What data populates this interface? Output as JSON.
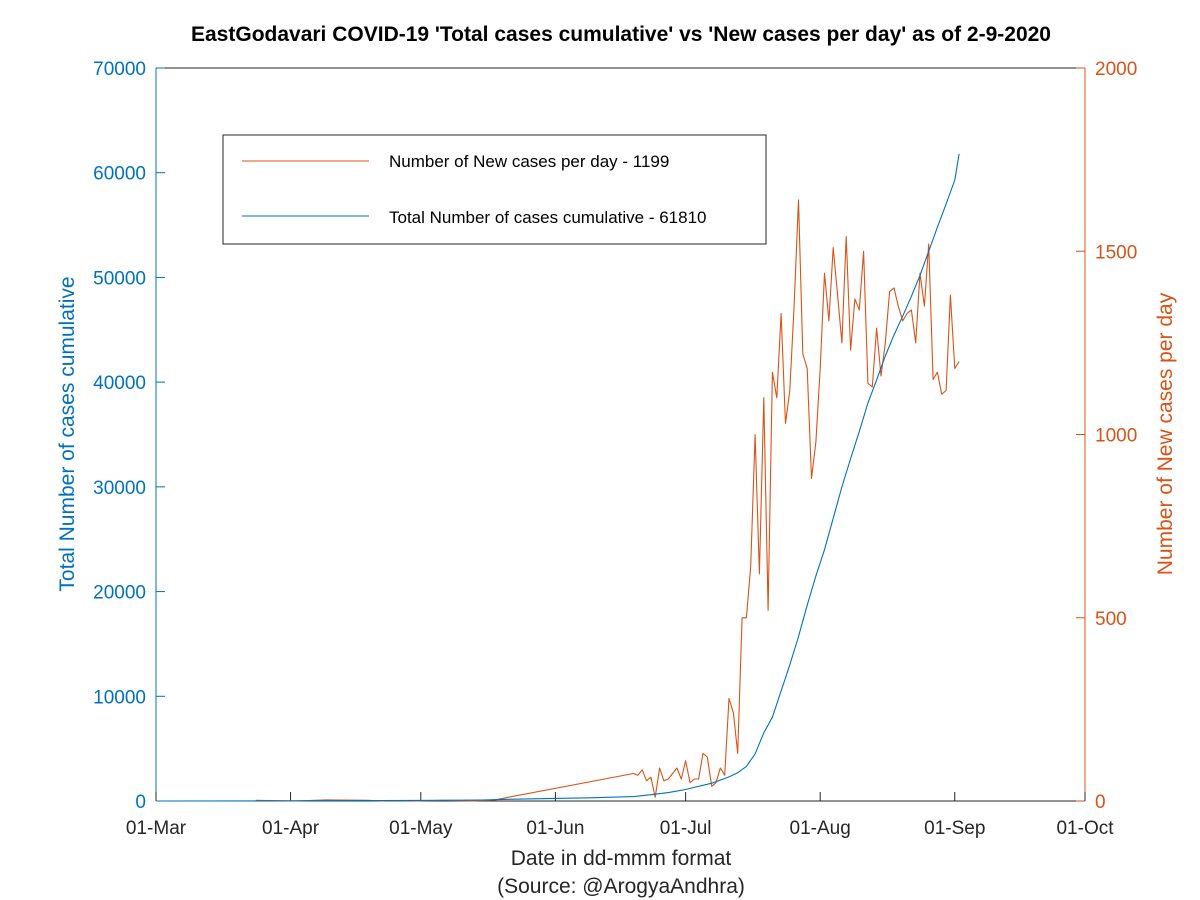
{
  "chart_data": {
    "type": "line",
    "title": "EastGodavari COVID-19 'Total cases cumulative' vs 'New cases per day' as of 2-9-2020",
    "xlabel": "Date in dd-mmm format",
    "xlabel_source": "(Source: @ArogyaAndhra)",
    "ylabel_left": "Total Number of cases cumulative",
    "ylabel_right": "Number of New cases per day",
    "x_ticks": [
      "01-Mar",
      "01-Apr",
      "01-May",
      "01-Jun",
      "01-Jul",
      "01-Aug",
      "01-Sep",
      "01-Oct"
    ],
    "x_tick_day_index": [
      0,
      31,
      61,
      92,
      122,
      153,
      184,
      214
    ],
    "x_range": [
      0,
      214
    ],
    "y_left_ticks": [
      "0",
      "10000",
      "20000",
      "30000",
      "40000",
      "50000",
      "60000",
      "70000"
    ],
    "y_left_range": [
      0,
      70000
    ],
    "y_right_ticks": [
      "0",
      "500",
      "1000",
      "1500",
      "2000"
    ],
    "y_right_range": [
      0,
      2000
    ],
    "grid": false,
    "legend_position": "top-left",
    "colors": {
      "new_cases": "#d95319",
      "cumulative": "#0072bd",
      "axis_left": "#0072bd",
      "axis_right": "#d95319",
      "frame": "#262626"
    },
    "series": [
      {
        "key": "new_cases",
        "name": "Number of New cases per day - 1199",
        "axis": "right",
        "x": [
          23,
          32,
          39,
          49,
          52,
          55,
          60,
          66,
          73,
          78,
          110,
          111,
          112,
          113,
          114,
          115,
          116,
          117,
          118,
          119,
          120,
          121,
          122,
          123,
          124,
          125,
          126,
          127,
          128,
          129,
          130,
          131,
          132,
          133,
          134,
          135,
          136,
          137,
          138,
          139,
          140,
          141,
          142,
          143,
          144,
          145,
          146,
          147,
          148,
          149,
          150,
          151,
          152,
          153,
          154,
          155,
          156,
          157,
          158,
          159,
          160,
          161,
          162,
          163,
          164,
          165,
          166,
          167,
          168,
          169,
          170,
          171,
          172,
          173,
          174,
          175,
          176,
          177,
          178,
          179,
          180,
          181,
          182,
          183,
          184,
          185
        ],
        "y": [
          2,
          0,
          3,
          2,
          0,
          1,
          0,
          2,
          0,
          3,
          75,
          70,
          85,
          55,
          65,
          10,
          90,
          55,
          60,
          75,
          90,
          60,
          110,
          50,
          60,
          60,
          130,
          120,
          40,
          50,
          90,
          70,
          280,
          240,
          130,
          500,
          500,
          640,
          1000,
          620,
          1100,
          520,
          1170,
          1100,
          1330,
          1030,
          1120,
          1350,
          1640,
          1220,
          1180,
          880,
          980,
          1180,
          1440,
          1310,
          1510,
          1380,
          1250,
          1540,
          1230,
          1370,
          1340,
          1500,
          1140,
          1130,
          1290,
          1160,
          1250,
          1390,
          1400,
          1350,
          1310,
          1330,
          1340,
          1250,
          1440,
          1350,
          1520,
          1150,
          1170,
          1110,
          1120,
          1380,
          1180,
          1199
        ]
      },
      {
        "key": "cumulative",
        "name": "Total Number of cases cumulative - 61810",
        "axis": "left",
        "x": [
          0,
          20,
          40,
          60,
          75,
          80,
          90,
          100,
          110,
          115,
          118,
          120,
          122,
          124,
          126,
          128,
          130,
          132,
          134,
          136,
          138,
          140,
          142,
          144,
          146,
          148,
          150,
          152,
          154,
          156,
          158,
          160,
          162,
          164,
          166,
          168,
          170,
          172,
          174,
          176,
          178,
          180,
          182,
          184,
          185
        ],
        "y": [
          0,
          10,
          30,
          60,
          100,
          150,
          230,
          310,
          420,
          650,
          800,
          950,
          1100,
          1300,
          1500,
          1700,
          2000,
          2300,
          2700,
          3300,
          4500,
          6500,
          8000,
          10500,
          13000,
          15700,
          18700,
          21500,
          24000,
          27000,
          30000,
          32700,
          35300,
          38000,
          40200,
          42500,
          44500,
          46300,
          48200,
          50200,
          52500,
          54800,
          57000,
          59300,
          61810
        ]
      }
    ]
  }
}
